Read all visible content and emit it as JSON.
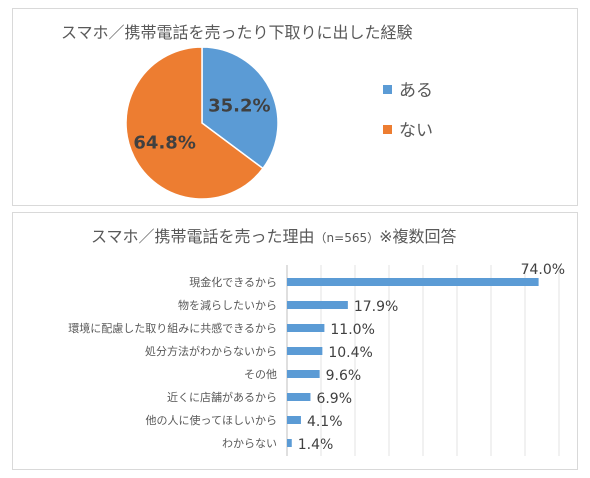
{
  "chart_data": [
    {
      "type": "pie",
      "title": "スマホ／携帯電話を売ったり下取りに出した経験",
      "categories": [
        "ある",
        "ない"
      ],
      "values": [
        35.2,
        64.8
      ],
      "labels": [
        "35.2%",
        "64.8%"
      ],
      "colors": [
        "#5b9bd5",
        "#ed7d31"
      ],
      "legend": "right"
    },
    {
      "type": "bar",
      "orientation": "horizontal",
      "title": "スマホ／携帯電話を売った理由",
      "title_suffix": "（n=565）",
      "title_note": "※複数回答",
      "categories": [
        "現金化できるから",
        "物を減らしたいから",
        "環境に配慮した取り組みに共感できるから",
        "処分方法がわからないから",
        "その他",
        "近くに店舗があるから",
        "他の人に使ってほしいから",
        "わからない"
      ],
      "values": [
        74.0,
        17.9,
        11.0,
        10.4,
        9.6,
        6.9,
        4.1,
        1.4
      ],
      "labels": [
        "74.0%",
        "17.9%",
        "11.0%",
        "10.4%",
        "9.6%",
        "6.9%",
        "4.1%",
        "1.4%"
      ],
      "xlim": [
        0,
        80
      ],
      "grid": true,
      "color": "#5b9bd5"
    }
  ]
}
